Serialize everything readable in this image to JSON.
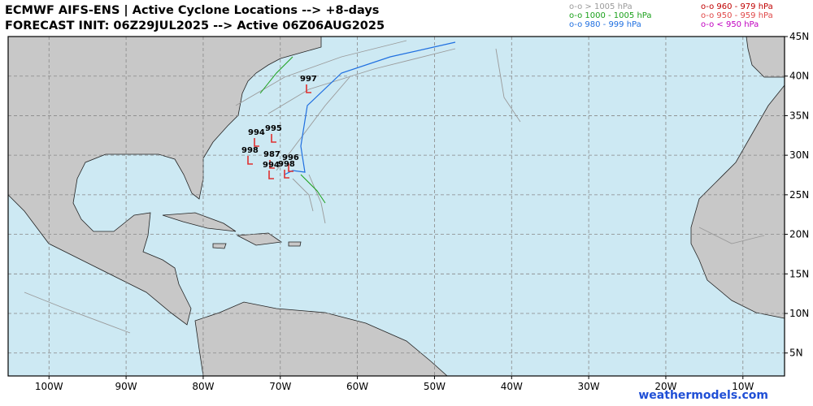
{
  "header": {
    "title": "ECMWF AIFS-ENS | Active Cyclone Locations --> +8-days",
    "subtitle": "FORECAST INIT: 06Z29JUL2025 --> Active 06Z06AUG2025"
  },
  "legend": [
    {
      "label": "o-o > 1005 hPa",
      "color": "#9a9a9a"
    },
    {
      "label": "o-o 1000 - 1005 hPa",
      "color": "#1aa01a"
    },
    {
      "label": "o-o 980 - 999 hPa",
      "color": "#1f6fe0"
    },
    {
      "label": "o-o 960 - 979 hPa",
      "color": "#c00000"
    },
    {
      "label": "o-o 950 - 959 hPa",
      "color": "#e04848"
    },
    {
      "label": "o-o < 950 hPa",
      "color": "#c000c0"
    }
  ],
  "map": {
    "lon_range": [
      -105.3,
      -4.6
    ],
    "lat_range": [
      2.1,
      45
    ],
    "lon_ticks": [
      {
        "value": -100,
        "label": "100W"
      },
      {
        "value": -90,
        "label": "90W"
      },
      {
        "value": -80,
        "label": "80W"
      },
      {
        "value": -70,
        "label": "70W"
      },
      {
        "value": -60,
        "label": "60W"
      },
      {
        "value": -50,
        "label": "50W"
      },
      {
        "value": -40,
        "label": "40W"
      },
      {
        "value": -30,
        "label": "30W"
      },
      {
        "value": -20,
        "label": "20W"
      },
      {
        "value": -10,
        "label": "10W"
      }
    ],
    "lat_ticks": [
      {
        "value": 45,
        "label": "45N"
      },
      {
        "value": 40,
        "label": "40N"
      },
      {
        "value": 35,
        "label": "35N"
      },
      {
        "value": 30,
        "label": "30N"
      },
      {
        "value": 25,
        "label": "25N"
      },
      {
        "value": 20,
        "label": "20N"
      },
      {
        "value": 15,
        "label": "15N"
      },
      {
        "value": 10,
        "label": "10N"
      },
      {
        "value": 5,
        "label": "5N"
      }
    ],
    "pressure_labels": [
      "997",
      "994",
      "995",
      "998",
      "987",
      "996",
      "994",
      "998"
    ]
  },
  "watermark": "weathermodels.com"
}
